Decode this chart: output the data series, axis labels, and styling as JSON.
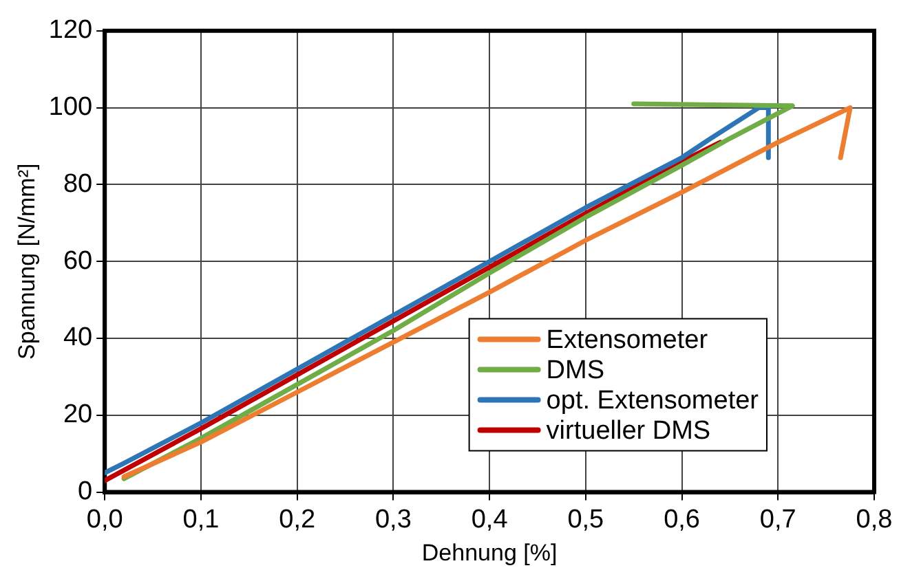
{
  "chart_data": {
    "type": "line",
    "xlabel": "Dehnung [%]",
    "ylabel": "Spannung [N/mm²]",
    "xlim": [
      0,
      0.8
    ],
    "xticks": [
      {
        "value": 0,
        "label": "0,0"
      },
      {
        "value": 0.1,
        "label": "0,1"
      },
      {
        "value": 0.2,
        "label": "0,2"
      },
      {
        "value": 0.3,
        "label": "0,3"
      },
      {
        "value": 0.4,
        "label": "0,4"
      },
      {
        "value": 0.5,
        "label": "0,5"
      },
      {
        "value": 0.6,
        "label": "0,6"
      },
      {
        "value": 0.7,
        "label": "0,7"
      },
      {
        "value": 0.8,
        "label": "0,8"
      }
    ],
    "ylim": [
      0,
      120
    ],
    "yticks": [
      0,
      20,
      40,
      60,
      80,
      100,
      120
    ],
    "grid": true,
    "legend": "bottom right",
    "marker": "none",
    "line_style": "solid",
    "series": [
      {
        "name": "Extensometer",
        "color": "#ed7d31",
        "x": [
          0.02,
          0.1,
          0.2,
          0.3,
          0.4,
          0.5,
          0.6,
          0.7,
          0.775,
          0.765
        ],
        "values": [
          4,
          13,
          26,
          39,
          52,
          65.5,
          78,
          91,
          100,
          87
        ]
      },
      {
        "name": "DMS",
        "color": "#70ad47",
        "x": [
          0.02,
          0.1,
          0.2,
          0.3,
          0.4,
          0.5,
          0.6,
          0.65,
          0.715,
          0.55
        ],
        "values": [
          3.5,
          14,
          28,
          42,
          57,
          71.5,
          85,
          92,
          100.5,
          101
        ]
      },
      {
        "name": "opt. Extensometer",
        "color": "#2e75b6",
        "x": [
          0,
          0.02,
          0.1,
          0.2,
          0.3,
          0.4,
          0.5,
          0.6,
          0.63,
          0.68,
          0.69,
          0.69
        ],
        "values": [
          5,
          7.5,
          18,
          32,
          46,
          60,
          74,
          87,
          92,
          100,
          100,
          87
        ]
      },
      {
        "name": "virtueller DMS",
        "color": "#c00000",
        "x": [
          0,
          0.1,
          0.2,
          0.3,
          0.4,
          0.5,
          0.6,
          0.64
        ],
        "values": [
          3,
          16.5,
          30.5,
          44.5,
          58.5,
          72.5,
          86,
          91
        ]
      }
    ]
  }
}
